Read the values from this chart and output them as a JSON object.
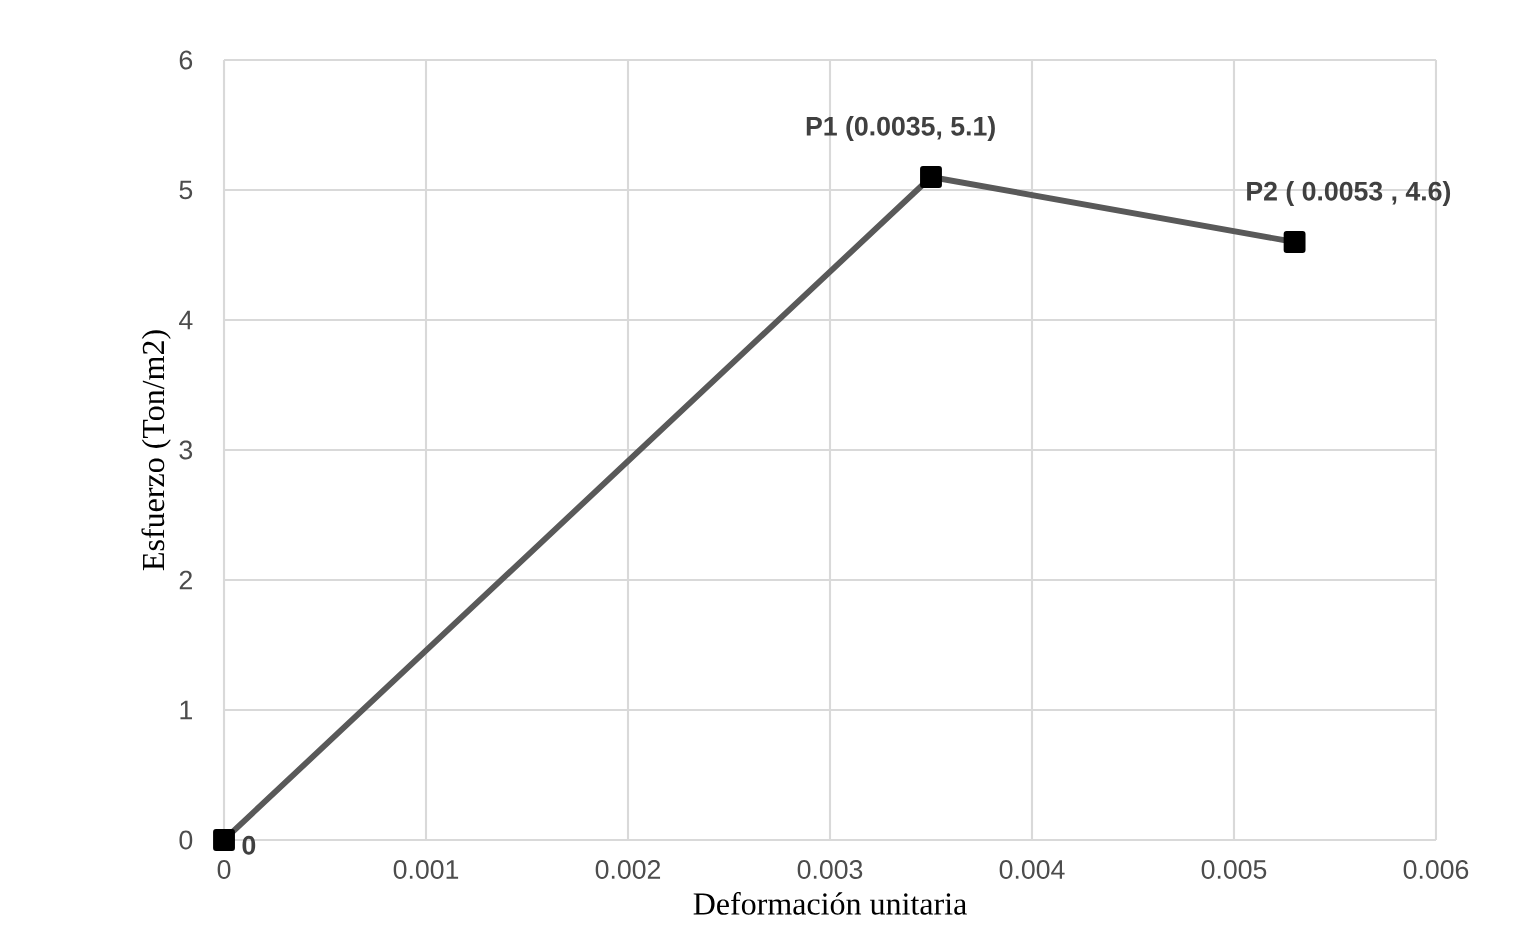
{
  "chart_data": {
    "type": "line",
    "xlabel": "Deformación  unitaria",
    "ylabel": "Esfuerzo (Ton/m2)",
    "x": [
      0,
      0.0035,
      0.0053
    ],
    "series": [
      {
        "color": "#595959",
        "values": [
          0,
          5.1,
          4.6
        ]
      }
    ],
    "xlim": [
      0,
      0.006
    ],
    "xticks": [
      0,
      0.001,
      0.002,
      0.003,
      0.004,
      0.005,
      0.006
    ],
    "ylim": [
      0,
      6
    ],
    "yticks": [
      0,
      1,
      2,
      3,
      4,
      5,
      6
    ],
    "grid": true,
    "marker": "square",
    "line_style": "solid",
    "annotations": [
      {
        "text": "0",
        "x": 0,
        "y": 0
      },
      {
        "text": "P1 (0.0035,  5.1)",
        "x": 0.0035,
        "y": 5.1
      },
      {
        "text": "P2 ( 0.0053 ,  4.6)",
        "x": 0.0053,
        "y": 4.6
      }
    ]
  }
}
